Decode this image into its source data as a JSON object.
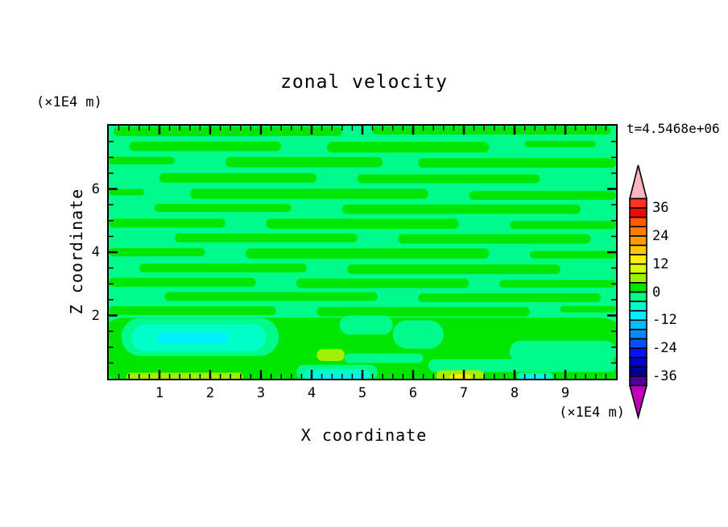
{
  "title": "zonal velocity",
  "time_label": "t=4.5468e+06",
  "axes": {
    "x": {
      "title": "X coordinate",
      "units_label": "(×1E4 m)",
      "range": [
        0,
        10
      ],
      "major_ticks": [
        "1",
        "2",
        "3",
        "4",
        "5",
        "6",
        "7",
        "8",
        "9"
      ],
      "minor_step": 0.2
    },
    "z": {
      "title": "Z coordinate",
      "units_label": "(×1E4 m)",
      "range": [
        0,
        8
      ],
      "major_ticks": [
        "2",
        "4",
        "6"
      ],
      "minor_step": 0.5
    }
  },
  "colorbar": {
    "labels": [
      "36",
      "24",
      "12",
      "0",
      "-12",
      "-24",
      "-36"
    ],
    "level_min": -40,
    "level_max": 40,
    "level_step": 4,
    "segment_colors_top_to_bottom": [
      "#FF3223",
      "#F00A00",
      "#FF5A00",
      "#FF7D00",
      "#FFA000",
      "#FFC800",
      "#FFF000",
      "#DCFF00",
      "#A0F000",
      "#00E600",
      "#00FA8C",
      "#00FFC8",
      "#00F0FF",
      "#00BEFF",
      "#008CFF",
      "#0050FF",
      "#0014FF",
      "#0000D2",
      "#000096",
      "#500096"
    ],
    "over_arrow_color": "#FFB4BE",
    "under_arrow_color": "#BE00BE"
  },
  "chart_data": {
    "type": "filled-contour",
    "title": "zonal velocity",
    "xlabel": "X coordinate",
    "ylabel": "Z coordinate",
    "axis_units": "(×1E4 m)",
    "time_annotation": "t=4.5468e+06",
    "x_range": [
      0,
      10
    ],
    "z_range": [
      0,
      8
    ],
    "contour_interval": 4,
    "labeled_levels": [
      36,
      24,
      12,
      0,
      -12,
      -24,
      -36
    ],
    "field_note": "velocity field dominated by values in [-8,8]; streaky zonal bands of -4..0 and 0..4, weak extrema near bottom boundary",
    "background_color": "#00FA8C",
    "shapes": [
      [
        0.1,
        4.6,
        7.82,
        0.15,
        "#00E600"
      ],
      [
        5.2,
        9.9,
        7.85,
        0.13,
        "#00E600"
      ],
      [
        0.4,
        3.4,
        7.35,
        0.15,
        "#00E600"
      ],
      [
        4.3,
        7.5,
        7.32,
        0.17,
        "#00E600"
      ],
      [
        8.2,
        9.6,
        7.42,
        0.1,
        "#00E600"
      ],
      [
        0.0,
        1.3,
        6.9,
        0.12,
        "#00E600"
      ],
      [
        2.3,
        5.4,
        6.85,
        0.16,
        "#00E600"
      ],
      [
        6.1,
        10.0,
        6.82,
        0.15,
        "#00E600"
      ],
      [
        1.0,
        4.1,
        6.35,
        0.15,
        "#00E600"
      ],
      [
        4.9,
        8.5,
        6.32,
        0.14,
        "#00E600"
      ],
      [
        0.0,
        0.7,
        5.9,
        0.1,
        "#00E600"
      ],
      [
        1.6,
        6.3,
        5.85,
        0.16,
        "#00E600"
      ],
      [
        7.1,
        10.0,
        5.8,
        0.14,
        "#00E600"
      ],
      [
        0.9,
        3.6,
        5.4,
        0.13,
        "#00E600"
      ],
      [
        4.6,
        9.3,
        5.36,
        0.15,
        "#00E600"
      ],
      [
        0.0,
        2.3,
        4.92,
        0.14,
        "#00E600"
      ],
      [
        3.1,
        6.9,
        4.9,
        0.16,
        "#00E600"
      ],
      [
        7.9,
        10.0,
        4.86,
        0.13,
        "#00E600"
      ],
      [
        1.3,
        4.9,
        4.45,
        0.14,
        "#00E600"
      ],
      [
        5.7,
        9.5,
        4.42,
        0.15,
        "#00E600"
      ],
      [
        0.0,
        1.9,
        4.0,
        0.13,
        "#00E600"
      ],
      [
        2.7,
        7.5,
        3.96,
        0.16,
        "#00E600"
      ],
      [
        8.3,
        10.0,
        3.92,
        0.12,
        "#00E600"
      ],
      [
        0.6,
        3.9,
        3.5,
        0.14,
        "#00E600"
      ],
      [
        4.7,
        8.9,
        3.46,
        0.15,
        "#00E600"
      ],
      [
        0.0,
        2.9,
        3.05,
        0.14,
        "#00E600"
      ],
      [
        3.7,
        7.1,
        3.02,
        0.15,
        "#00E600"
      ],
      [
        7.7,
        10.0,
        3.0,
        0.12,
        "#00E600"
      ],
      [
        1.1,
        5.3,
        2.6,
        0.14,
        "#00E600"
      ],
      [
        6.1,
        9.7,
        2.56,
        0.14,
        "#00E600"
      ],
      [
        0.0,
        3.3,
        2.15,
        0.14,
        "#00E600"
      ],
      [
        4.1,
        8.3,
        2.12,
        0.15,
        "#00E600"
      ],
      [
        8.9,
        10.0,
        2.2,
        0.1,
        "#00E600"
      ],
      [
        -0.3,
        10.3,
        0.93,
        1.0,
        "#00E600"
      ],
      [
        0.25,
        3.35,
        1.32,
        0.6,
        "#00FA8C"
      ],
      [
        4.55,
        5.6,
        1.7,
        0.3,
        "#00FA8C"
      ],
      [
        5.6,
        6.6,
        1.4,
        0.45,
        "#00FA8C"
      ],
      [
        3.7,
        5.3,
        0.2,
        0.24,
        "#00FA8C"
      ],
      [
        4.65,
        6.2,
        0.65,
        0.15,
        "#00FA8C"
      ],
      [
        6.3,
        10.0,
        0.42,
        0.2,
        "#00FA8C"
      ],
      [
        7.9,
        10.0,
        0.85,
        0.35,
        "#00FA8C"
      ],
      [
        9.05,
        10.2,
        0.06,
        0.12,
        "#00E600"
      ],
      [
        0.45,
        3.1,
        1.3,
        0.42,
        "#00FFC8"
      ],
      [
        3.85,
        5.15,
        0.14,
        0.16,
        "#00FFC8"
      ],
      [
        8.05,
        8.75,
        0.07,
        0.12,
        "#00FFC8"
      ],
      [
        0.95,
        2.35,
        1.3,
        0.17,
        "#00F0FF"
      ],
      [
        3.95,
        5.05,
        0.04,
        0.08,
        "#00F0FF"
      ],
      [
        8.15,
        8.6,
        0.04,
        0.07,
        "#00F0FF"
      ],
      [
        0.35,
        2.65,
        0.05,
        0.14,
        "#A0F000"
      ],
      [
        4.1,
        4.65,
        0.75,
        0.19,
        "#A0F000"
      ],
      [
        6.45,
        7.4,
        0.1,
        0.17,
        "#A0F000"
      ],
      [
        6.72,
        7.15,
        0.05,
        0.1,
        "#F0F000"
      ]
    ]
  }
}
